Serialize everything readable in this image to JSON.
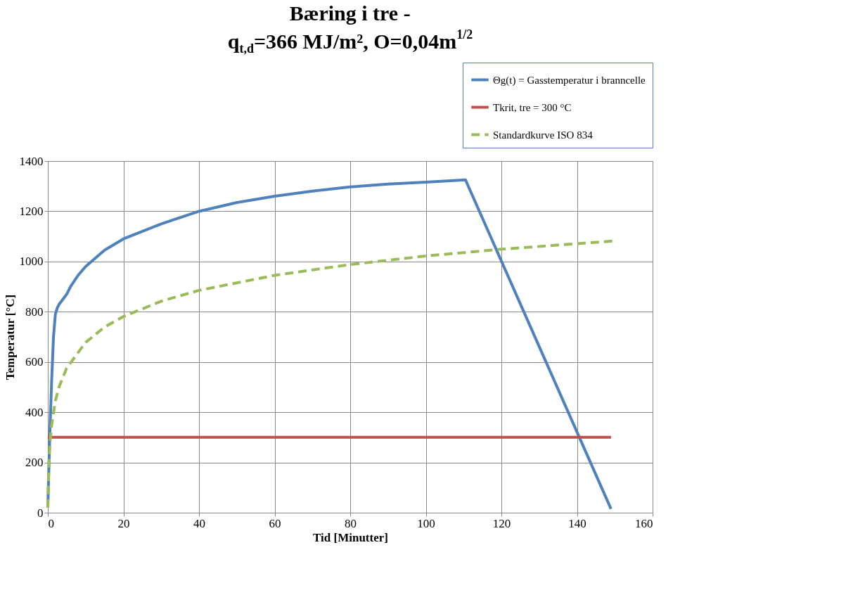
{
  "chart_data": {
    "type": "line",
    "title": [
      "Bæring i tre -",
      "q$_{t,d}$=366 MJ/m², O=0,04m$^{1/2}$"
    ],
    "xlabel": "Tid [Minutter]",
    "ylabel": "Temperatur [°C]",
    "xlim": [
      0,
      160
    ],
    "xticks": [
      0,
      20,
      40,
      60,
      80,
      100,
      120,
      140,
      160
    ],
    "ylim": [
      0,
      1400
    ],
    "yticks": [
      0,
      200,
      400,
      600,
      800,
      1000,
      1200,
      1400
    ],
    "grid": true,
    "legend": "top right",
    "series": [
      {
        "name": "Θg(t) = Gasstemperatur i branncelle",
        "color": "#4f81bd",
        "line_style": "solid",
        "x": [
          0,
          0.5,
          1,
          1.5,
          2,
          2.5,
          3,
          4,
          5,
          6,
          8,
          10,
          15,
          20,
          30,
          40,
          50,
          60,
          70,
          80,
          90,
          100,
          110.5,
          149
        ],
        "values": [
          20,
          300,
          520,
          700,
          790,
          815,
          830,
          850,
          870,
          900,
          945,
          980,
          1045,
          1090,
          1150,
          1200,
          1235,
          1260,
          1280,
          1297,
          1308,
          1316,
          1325,
          15
        ]
      },
      {
        "name": "Tkrit, tre = 300 °C",
        "color": "#c0504d",
        "line_style": "solid",
        "x": [
          0,
          149
        ],
        "values": [
          300,
          300
        ]
      },
      {
        "name": "Standardkurve ISO 834",
        "color": "#9bbb59",
        "line_style": "dashed",
        "x": [
          0,
          0.25,
          0.5,
          1,
          2,
          3,
          5,
          10,
          15,
          20,
          30,
          40,
          60,
          80,
          100,
          120,
          150
        ],
        "values": [
          20,
          185,
          261,
          349,
          445,
          502,
          576,
          678,
          739,
          781,
          842,
          885,
          945,
          988,
          1022,
          1049,
          1082
        ]
      }
    ]
  }
}
